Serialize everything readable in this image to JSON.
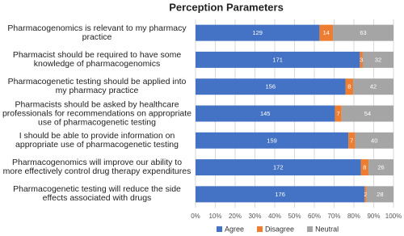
{
  "chart_data": {
    "type": "bar",
    "orientation": "horizontal",
    "stacked": true,
    "normalize": "percent",
    "title": "Perception Parameters",
    "categories": [
      "Pharmacogenomics is relevant to my pharmacy practice",
      "Pharmacist should be required to have some knowledge of pharmacogenomics",
      "Pharmacogenetic testing should be applied into my pharmacy practice",
      "Pharmacists should be asked by healthcare professionals for recommendations on appropriate use of pharmacogenetic testing",
      "I should be able to provide information on appropriate use of pharmacogenetic testing",
      "Pharmacogenomics will improve our ability to more effectively control drug therapy expenditures",
      "Pharmacogenetic testing will reduce the side effects associated with drugs"
    ],
    "series": [
      {
        "name": "Agree",
        "color": "#4472c4",
        "values": [
          129,
          171,
          156,
          145,
          159,
          172,
          176
        ]
      },
      {
        "name": "Disagree",
        "color": "#ed7d31",
        "values": [
          14,
          3,
          8,
          7,
          7,
          8,
          2
        ]
      },
      {
        "name": "Neutral",
        "color": "#a5a5a5",
        "values": [
          63,
          32,
          42,
          54,
          40,
          26,
          28
        ]
      }
    ],
    "xlim": [
      0,
      100
    ],
    "xticks": [
      {
        "value": 0,
        "label": "0%"
      },
      {
        "value": 10,
        "label": "10%"
      },
      {
        "value": 20,
        "label": "20%"
      },
      {
        "value": 30,
        "label": "30%"
      },
      {
        "value": 40,
        "label": "40%"
      },
      {
        "value": 50,
        "label": "50%"
      },
      {
        "value": 60,
        "label": "60%"
      },
      {
        "value": 70,
        "label": "70%"
      },
      {
        "value": 80,
        "label": "80%"
      },
      {
        "value": 90,
        "label": "90%"
      },
      {
        "value": 100,
        "label": "100%"
      }
    ],
    "grid": true,
    "legend": "bottom"
  }
}
